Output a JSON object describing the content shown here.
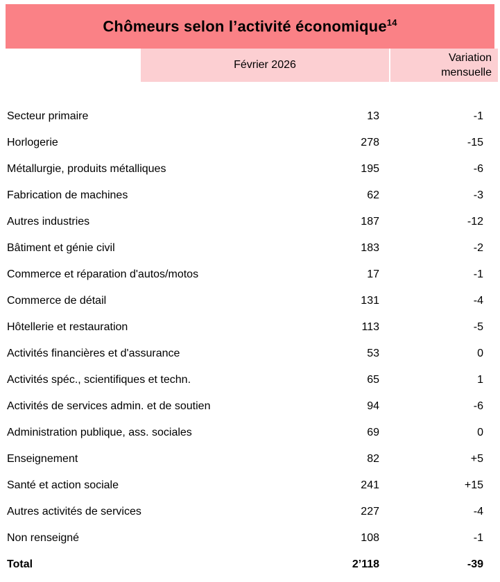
{
  "title": {
    "text": "Chômeurs selon l’activité économique",
    "superscript": "14"
  },
  "header": {
    "month_column": "Février 2026",
    "variation_column": "Variation mensuelle"
  },
  "colors": {
    "title_bg": "#FA8186",
    "header_bg": "#FCCFD2"
  },
  "rows": [
    {
      "label": "Secteur primaire",
      "value": "13",
      "variation": "-1"
    },
    {
      "label": "Horlogerie",
      "value": "278",
      "variation": "-15"
    },
    {
      "label": "Métallurgie, produits métalliques",
      "value": "195",
      "variation": "-6"
    },
    {
      "label": "Fabrication de machines",
      "value": "62",
      "variation": "-3"
    },
    {
      "label": "Autres industries",
      "value": "187",
      "variation": "-12"
    },
    {
      "label": "Bâtiment et génie civil",
      "value": "183",
      "variation": "-2"
    },
    {
      "label": "Commerce et réparation d'autos/motos",
      "value": "17",
      "variation": "-1"
    },
    {
      "label": "Commerce de détail",
      "value": "131",
      "variation": "-4"
    },
    {
      "label": "Hôtellerie et restauration",
      "value": "113",
      "variation": "-5"
    },
    {
      "label": "Activités financières et d'assurance",
      "value": "53",
      "variation": "0"
    },
    {
      "label": "Activités spéc., scientifiques et techn.",
      "value": "65",
      "variation": "1"
    },
    {
      "label": "Activités de services admin. et de soutien",
      "value": "94",
      "variation": "-6"
    },
    {
      "label": "Administration publique, ass. sociales",
      "value": "69",
      "variation": "0"
    },
    {
      "label": "Enseignement",
      "value": "82",
      "variation": "+5"
    },
    {
      "label": "Santé et action sociale",
      "value": "241",
      "variation": "+15"
    },
    {
      "label": "Autres activités de services",
      "value": "227",
      "variation": "-4"
    },
    {
      "label": "Non renseigné",
      "value": "108",
      "variation": "-1"
    },
    {
      "label": "Total",
      "value": "2’118",
      "variation": "-39",
      "is_total": true
    }
  ]
}
